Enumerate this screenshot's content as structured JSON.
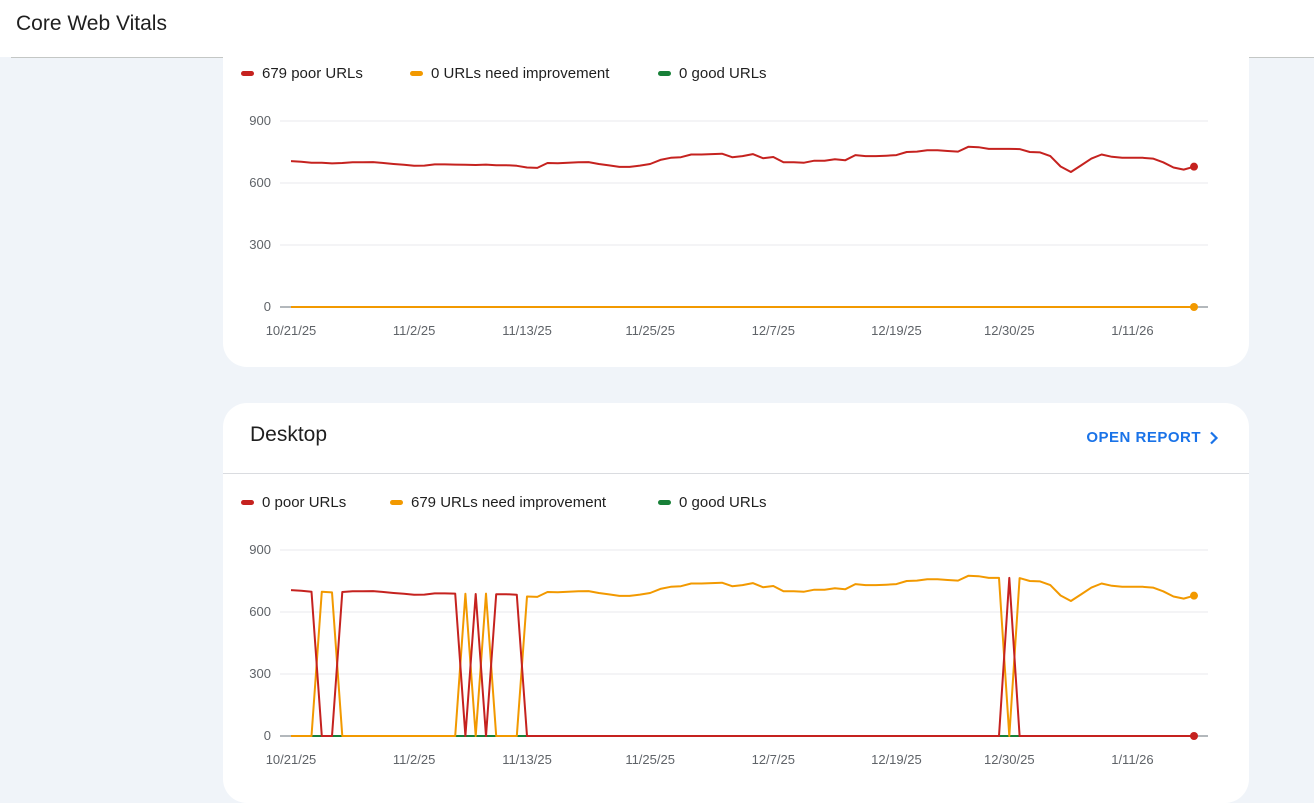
{
  "header": {
    "title": "Core Web Vitals"
  },
  "colors": {
    "poor": "#c5221f",
    "need_improvement": "#f29900",
    "good": "#188038",
    "link": "#1a73e8"
  },
  "mobile": {
    "legend": [
      "679 poor URLs",
      "0 URLs need improvement",
      "0 good URLs"
    ]
  },
  "desktop": {
    "title": "Desktop",
    "open_report": "OPEN REPORT",
    "open_report_icon": "chevron-right-icon",
    "legend": [
      "0 poor URLs",
      "679 URLs need improvement",
      "0 good URLs"
    ]
  },
  "chart_data": [
    {
      "type": "line",
      "ylim": [
        0,
        900
      ],
      "yticks": [
        "0",
        "300",
        "600",
        "900"
      ],
      "xticks": [
        "10/21/25",
        "11/2/25",
        "11/13/25",
        "11/25/25",
        "12/7/25",
        "12/19/25",
        "12/30/25",
        "1/11/26"
      ],
      "xtick_index": [
        0,
        12,
        23,
        35,
        47,
        59,
        70,
        82
      ],
      "series": [
        {
          "name": "679 poor URLs",
          "key": "poor",
          "values": [
            706,
            703,
            698,
            698,
            695,
            697,
            700,
            700,
            701,
            697,
            692,
            688,
            683,
            684,
            690,
            690,
            689,
            688,
            687,
            689,
            686,
            686,
            683,
            675,
            673,
            697,
            696,
            698,
            700,
            701,
            692,
            685,
            678,
            678,
            684,
            692,
            712,
            722,
            725,
            738,
            738,
            740,
            742,
            725,
            730,
            740,
            720,
            726,
            700,
            700,
            698,
            708,
            708,
            715,
            710,
            735,
            730,
            730,
            732,
            735,
            750,
            752,
            758,
            758,
            755,
            752,
            775,
            773,
            765,
            765,
            765,
            764,
            750,
            748,
            730,
            680,
            653,
            685,
            718,
            738,
            727,
            722,
            722,
            722,
            718,
            700,
            675,
            665,
            679
          ]
        },
        {
          "name": "0 URLs need improvement",
          "key": "need_improvement",
          "values": [
            0,
            0,
            0,
            0,
            0,
            0,
            0,
            0,
            0,
            0,
            0,
            0,
            0,
            0,
            0,
            0,
            0,
            0,
            0,
            0,
            0,
            0,
            0,
            0,
            0,
            0,
            0,
            0,
            0,
            0,
            0,
            0,
            0,
            0,
            0,
            0,
            0,
            0,
            0,
            0,
            0,
            0,
            0,
            0,
            0,
            0,
            0,
            0,
            0,
            0,
            0,
            0,
            0,
            0,
            0,
            0,
            0,
            0,
            0,
            0,
            0,
            0,
            0,
            0,
            0,
            0,
            0,
            0,
            0,
            0,
            0,
            0,
            0,
            0,
            0,
            0,
            0,
            0,
            0,
            0,
            0,
            0,
            0,
            0,
            0,
            0,
            0,
            0,
            0
          ]
        },
        {
          "name": "0 good URLs",
          "key": "good",
          "values": [
            0,
            0,
            0,
            0,
            0,
            0,
            0,
            0,
            0,
            0,
            0,
            0,
            0,
            0,
            0,
            0,
            0,
            0,
            0,
            0,
            0,
            0,
            0,
            0,
            0,
            0,
            0,
            0,
            0,
            0,
            0,
            0,
            0,
            0,
            0,
            0,
            0,
            0,
            0,
            0,
            0,
            0,
            0,
            0,
            0,
            0,
            0,
            0,
            0,
            0,
            0,
            0,
            0,
            0,
            0,
            0,
            0,
            0,
            0,
            0,
            0,
            0,
            0,
            0,
            0,
            0,
            0,
            0,
            0,
            0,
            0,
            0,
            0,
            0,
            0,
            0,
            0,
            0,
            0,
            0,
            0,
            0,
            0,
            0,
            0,
            0,
            0,
            0,
            0
          ]
        }
      ]
    },
    {
      "type": "line",
      "ylim": [
        0,
        900
      ],
      "yticks": [
        "0",
        "300",
        "600",
        "900"
      ],
      "xticks": [
        "10/21/25",
        "11/2/25",
        "11/13/25",
        "11/25/25",
        "12/7/25",
        "12/19/25",
        "12/30/25",
        "1/11/26"
      ],
      "xtick_index": [
        0,
        12,
        23,
        35,
        47,
        59,
        70,
        82
      ],
      "series": [
        {
          "name": "0 poor URLs",
          "key": "poor",
          "values": [
            706,
            703,
            698,
            0,
            0,
            697,
            700,
            700,
            701,
            697,
            692,
            688,
            683,
            684,
            690,
            690,
            689,
            0,
            687,
            0,
            686,
            686,
            683,
            0,
            0,
            0,
            0,
            0,
            0,
            0,
            0,
            0,
            0,
            0,
            0,
            0,
            0,
            0,
            0,
            0,
            0,
            0,
            0,
            0,
            0,
            0,
            0,
            0,
            0,
            0,
            0,
            0,
            0,
            0,
            0,
            0,
            0,
            0,
            0,
            0,
            0,
            0,
            0,
            0,
            0,
            0,
            0,
            0,
            0,
            0,
            765,
            0,
            0,
            0,
            0,
            0,
            0,
            0,
            0,
            0,
            0,
            0,
            0,
            0,
            0,
            0,
            0,
            0,
            0
          ]
        },
        {
          "name": "679 URLs need improvement",
          "key": "need_improvement",
          "values": [
            0,
            0,
            0,
            698,
            695,
            0,
            0,
            0,
            0,
            0,
            0,
            0,
            0,
            0,
            0,
            0,
            0,
            688,
            0,
            689,
            0,
            0,
            0,
            675,
            673,
            697,
            696,
            698,
            700,
            701,
            692,
            685,
            678,
            678,
            684,
            692,
            712,
            722,
            725,
            738,
            738,
            740,
            742,
            725,
            730,
            740,
            720,
            726,
            700,
            700,
            698,
            708,
            708,
            715,
            710,
            735,
            730,
            730,
            732,
            735,
            750,
            752,
            758,
            758,
            755,
            752,
            775,
            773,
            765,
            765,
            0,
            764,
            750,
            748,
            730,
            680,
            653,
            685,
            718,
            738,
            727,
            722,
            722,
            722,
            718,
            700,
            675,
            665,
            679
          ]
        },
        {
          "name": "0 good URLs",
          "key": "good",
          "values": [
            0,
            0,
            0,
            0,
            0,
            0,
            0,
            0,
            0,
            0,
            0,
            0,
            0,
            0,
            0,
            0,
            0,
            0,
            0,
            0,
            0,
            0,
            0,
            0,
            0,
            0,
            0,
            0,
            0,
            0,
            0,
            0,
            0,
            0,
            0,
            0,
            0,
            0,
            0,
            0,
            0,
            0,
            0,
            0,
            0,
            0,
            0,
            0,
            0,
            0,
            0,
            0,
            0,
            0,
            0,
            0,
            0,
            0,
            0,
            0,
            0,
            0,
            0,
            0,
            0,
            0,
            0,
            0,
            0,
            0,
            0,
            0,
            0,
            0,
            0,
            0,
            0,
            0,
            0,
            0,
            0,
            0,
            0,
            0,
            0,
            0,
            0,
            0,
            0
          ]
        }
      ]
    }
  ]
}
